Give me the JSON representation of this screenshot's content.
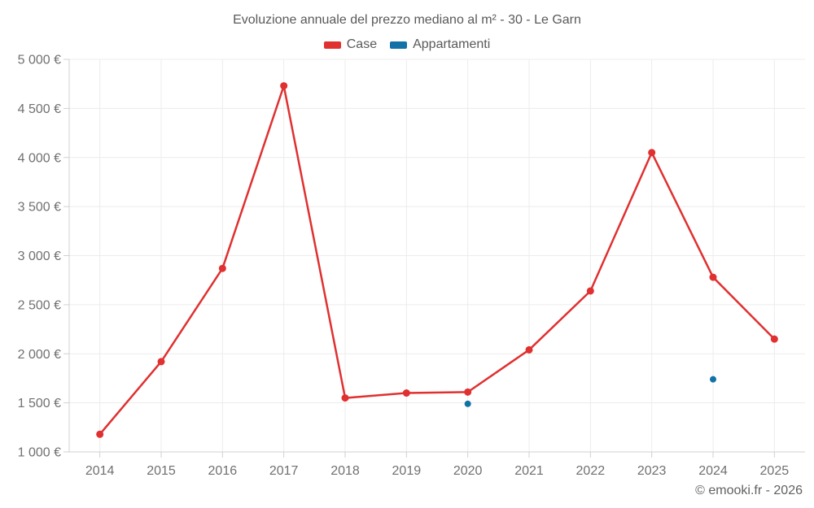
{
  "footer": {
    "credit": "© emooki.fr - 2026"
  },
  "colors": {
    "case_red": "#e03030",
    "appartamenti_blue": "#1272a8",
    "gridline": "#ececec",
    "axis_line": "#d0d0d0",
    "tick_label": "#707070",
    "title_text": "#595959",
    "background": "#ffffff"
  },
  "chart_data": {
    "type": "line",
    "title": "Evoluzione annuale del prezzo mediano al m² - 30 - Le Garn",
    "categories": [
      "2014",
      "2015",
      "2016",
      "2017",
      "2018",
      "2019",
      "2020",
      "2021",
      "2022",
      "2023",
      "2024",
      "2025"
    ],
    "series": [
      {
        "name": "Case",
        "color": "#e03030",
        "draw": "line+markers",
        "line_width": 2.5,
        "marker_radius": 4.5,
        "values": [
          1180,
          1920,
          2870,
          4730,
          1550,
          1600,
          1610,
          2040,
          2640,
          4050,
          2780,
          2150
        ]
      },
      {
        "name": "Appartamenti",
        "color": "#1272a8",
        "draw": "markers",
        "marker_radius": 4,
        "values": [
          null,
          null,
          null,
          null,
          null,
          null,
          1490,
          null,
          null,
          null,
          1740,
          null
        ]
      }
    ],
    "ylim": [
      1000,
      5000
    ],
    "yticks": [
      1000,
      1500,
      2000,
      2500,
      3000,
      3500,
      4000,
      4500,
      5000
    ],
    "ytick_labels": [
      "1 000 €",
      "1 500 €",
      "2 000 €",
      "2 500 €",
      "3 000 €",
      "3 500 €",
      "4 000 €",
      "4 500 €",
      "5 000 €"
    ],
    "xlabel": "",
    "ylabel": "",
    "grid": true,
    "legend_position": "top"
  }
}
